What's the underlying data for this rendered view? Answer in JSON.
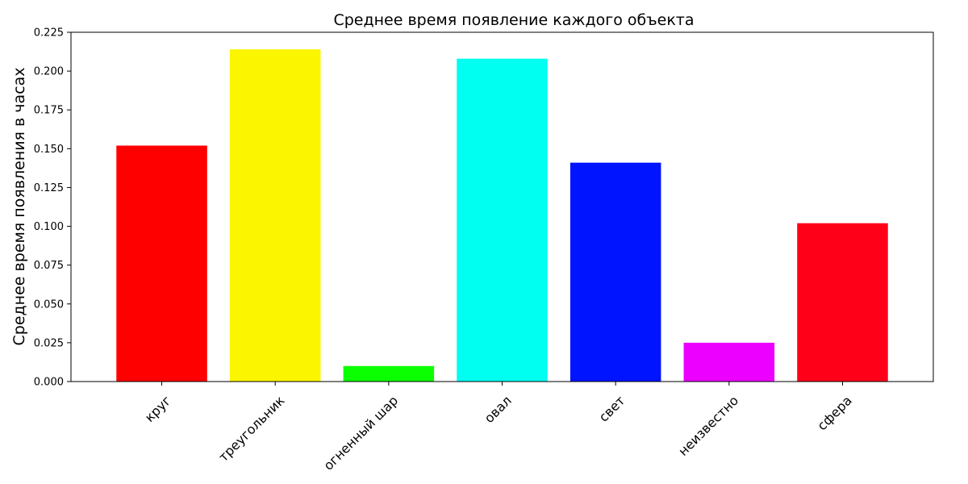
{
  "chart_data": {
    "type": "bar",
    "title": "Среднее время появление каждого объекта",
    "xlabel": "",
    "ylabel": "Среднее время появления в часах",
    "categories": [
      "круг",
      "треугольник",
      "огненный шар",
      "овал",
      "свет",
      "неизвестно",
      "сфера"
    ],
    "values": [
      0.152,
      0.214,
      0.01,
      0.208,
      0.141,
      0.025,
      0.102
    ],
    "colors": [
      "#ff0000",
      "#fbf500",
      "#0cff00",
      "#00fff0",
      "#0014ff",
      "#ec00ff",
      "#ff0019"
    ],
    "ylim": [
      0,
      0.225
    ],
    "yticks": [
      "0.000",
      "0.025",
      "0.050",
      "0.075",
      "0.100",
      "0.125",
      "0.150",
      "0.175",
      "0.200",
      "0.225"
    ],
    "grid": false,
    "legend": "none"
  }
}
